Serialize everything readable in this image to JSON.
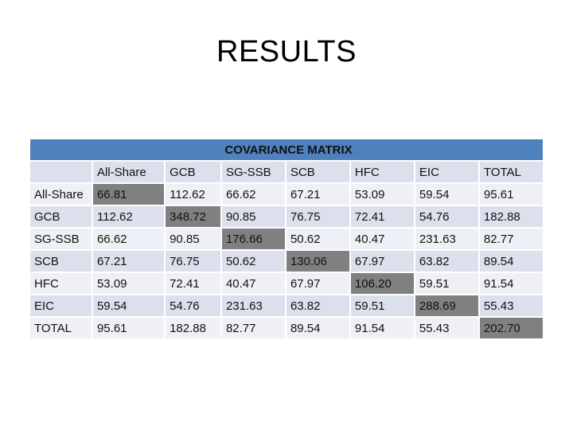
{
  "title": "RESULTS",
  "table": {
    "caption": "COVARIANCE MATRIX",
    "columns": [
      "",
      "All-Share",
      "GCB",
      "SG-SSB",
      "SCB",
      "HFC",
      "EIC",
      "TOTAL"
    ],
    "rows": [
      {
        "label": "All-Share",
        "values": [
          "66.81",
          "112.62",
          "66.62",
          "67.21",
          "53.09",
          "59.54",
          "95.61"
        ]
      },
      {
        "label": "GCB",
        "values": [
          "112.62",
          "348.72",
          "90.85",
          "76.75",
          "72.41",
          "54.76",
          "182.88"
        ]
      },
      {
        "label": "SG-SSB",
        "values": [
          "66.62",
          "90.85",
          "176.66",
          "50.62",
          "40.47",
          "231.63",
          "82.77"
        ]
      },
      {
        "label": "SCB",
        "values": [
          "67.21",
          "76.75",
          "50.62",
          "130.06",
          "67.97",
          "63.82",
          "89.54"
        ]
      },
      {
        "label": "HFC",
        "values": [
          "53.09",
          "72.41",
          "40.47",
          "67.97",
          "106.20",
          "59.51",
          "91.54"
        ]
      },
      {
        "label": "EIC",
        "values": [
          "59.54",
          "54.76",
          "231.63",
          "63.82",
          "59.51",
          "288.69",
          "55.43"
        ]
      },
      {
        "label": "TOTAL",
        "values": [
          "95.61",
          "182.88",
          "82.77",
          "89.54",
          "91.54",
          "55.43",
          "202.70"
        ]
      }
    ]
  },
  "colors": {
    "header": "#4f81bd",
    "row_dark": "#dbe0ec",
    "row_light": "#eef0f6",
    "diagonal_highlight": "#808080"
  }
}
